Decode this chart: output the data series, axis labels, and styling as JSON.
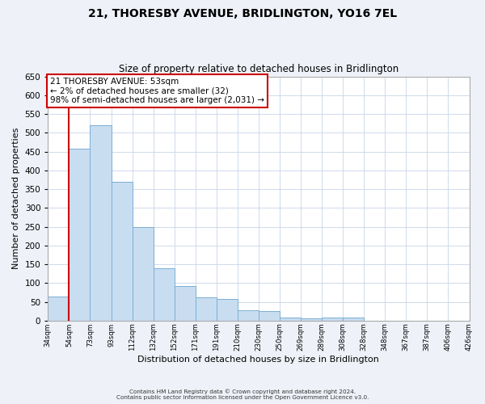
{
  "title": "21, THORESBY AVENUE, BRIDLINGTON, YO16 7EL",
  "subtitle": "Size of property relative to detached houses in Bridlington",
  "xlabel": "Distribution of detached houses by size in Bridlington",
  "ylabel": "Number of detached properties",
  "bar_values": [
    63,
    457,
    521,
    369,
    248,
    140,
    93,
    62,
    57,
    27,
    25,
    8,
    5,
    9,
    8,
    0,
    0,
    0,
    0,
    0
  ],
  "bin_labels": [
    "34sqm",
    "54sqm",
    "73sqm",
    "93sqm",
    "112sqm",
    "132sqm",
    "152sqm",
    "171sqm",
    "191sqm",
    "210sqm",
    "230sqm",
    "250sqm",
    "269sqm",
    "289sqm",
    "308sqm",
    "328sqm",
    "348sqm",
    "367sqm",
    "387sqm",
    "406sqm",
    "426sqm"
  ],
  "bar_color": "#c9ddf0",
  "bar_edge_color": "#7aafd4",
  "ylim": [
    0,
    650
  ],
  "yticks": [
    0,
    50,
    100,
    150,
    200,
    250,
    300,
    350,
    400,
    450,
    500,
    550,
    600,
    650
  ],
  "red_line_x": 1,
  "annotation_title": "21 THORESBY AVENUE: 53sqm",
  "annotation_line2": "← 2% of detached houses are smaller (32)",
  "annotation_line3": "98% of semi-detached houses are larger (2,031) →",
  "footnote1": "Contains HM Land Registry data © Crown copyright and database right 2024.",
  "footnote2": "Contains public sector information licensed under the Open Government Licence v3.0.",
  "bg_color": "#eef2f8",
  "plot_bg_color": "#ffffff",
  "grid_color": "#c8d4e8",
  "annotation_box_edge": "#cc0000",
  "red_line_color": "#cc0000"
}
